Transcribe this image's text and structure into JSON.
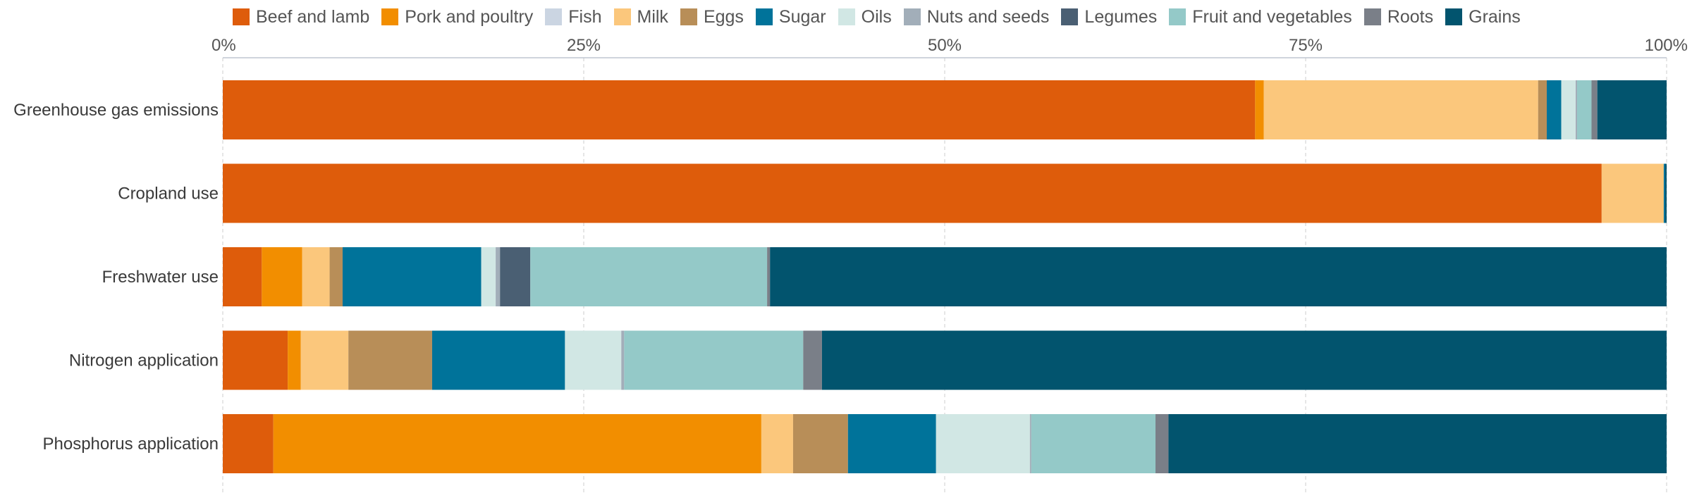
{
  "chart_data": {
    "type": "bar",
    "orientation": "horizontal",
    "stacked": true,
    "normalized": true,
    "categories": [
      "Greenhouse gas emissions",
      "Cropland use",
      "Freshwater use",
      "Nitrogen application",
      "Phosphorus application"
    ],
    "xlim": [
      0,
      100
    ],
    "xticks": [
      "0%",
      "25%",
      "50%",
      "75%",
      "100%"
    ],
    "xaxis_position": "top",
    "grid": true,
    "legend_position": "top",
    "series": [
      {
        "name": "Beef and lamb",
        "color": "#de5c0b",
        "values": [
          71.5,
          95.5,
          2.7,
          4.5,
          3.5
        ]
      },
      {
        "name": "Pork and poultry",
        "color": "#f28e00",
        "values": [
          0.6,
          0,
          2.8,
          0.9,
          33.8
        ]
      },
      {
        "name": "Fish",
        "color": "#cbd5e2",
        "values": [
          0,
          0,
          0,
          0,
          0
        ]
      },
      {
        "name": "Milk",
        "color": "#fbc77c",
        "values": [
          19.0,
          4.3,
          1.9,
          3.3,
          2.2
        ]
      },
      {
        "name": "Eggs",
        "color": "#b88e58",
        "values": [
          0.6,
          0,
          0.9,
          5.8,
          3.8
        ]
      },
      {
        "name": "Sugar",
        "color": "#00739a",
        "values": [
          1.0,
          0.1,
          9.6,
          9.2,
          6.1
        ]
      },
      {
        "name": "Oils",
        "color": "#d1e7e4",
        "values": [
          1.0,
          0,
          1.0,
          3.9,
          6.5
        ]
      },
      {
        "name": "Nuts and seeds",
        "color": "#a2aeb9",
        "values": [
          0.1,
          0,
          0.3,
          0.2,
          0.1
        ]
      },
      {
        "name": "Legumes",
        "color": "#4a5f73",
        "values": [
          0,
          0,
          2.1,
          0,
          0
        ]
      },
      {
        "name": "Fruit and vegetables",
        "color": "#94c9c8",
        "values": [
          1.0,
          0,
          16.4,
          12.4,
          8.6
        ]
      },
      {
        "name": "Roots",
        "color": "#7a7f88",
        "values": [
          0.4,
          0,
          0.2,
          1.3,
          0.9
        ]
      },
      {
        "name": "Grains",
        "color": "#02546e",
        "values": [
          4.8,
          0.1,
          62.1,
          58.5,
          34.5
        ]
      }
    ]
  }
}
